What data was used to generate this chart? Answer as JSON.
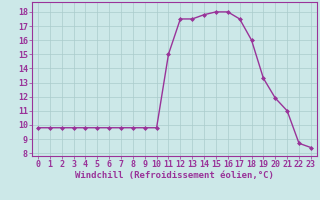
{
  "x": [
    0,
    1,
    2,
    3,
    4,
    5,
    6,
    7,
    8,
    9,
    10,
    11,
    12,
    13,
    14,
    15,
    16,
    17,
    18,
    19,
    20,
    21,
    22,
    23
  ],
  "y": [
    9.8,
    9.8,
    9.8,
    9.8,
    9.8,
    9.8,
    9.8,
    9.8,
    9.8,
    9.8,
    9.8,
    15.0,
    17.5,
    17.5,
    17.8,
    18.0,
    18.0,
    17.5,
    16.0,
    13.3,
    11.9,
    11.0,
    8.7,
    8.4
  ],
  "line_color": "#993399",
  "marker": "D",
  "marker_size": 2.0,
  "bg_color": "#cce8e8",
  "grid_color": "#aacccc",
  "xlabel": "Windchill (Refroidissement éolien,°C)",
  "xlabel_fontsize": 6.5,
  "ylabel_ticks": [
    8,
    9,
    10,
    11,
    12,
    13,
    14,
    15,
    16,
    17,
    18
  ],
  "xtick_labels": [
    "0",
    "1",
    "2",
    "3",
    "4",
    "5",
    "6",
    "7",
    "8",
    "9",
    "10",
    "11",
    "12",
    "13",
    "14",
    "15",
    "16",
    "17",
    "18",
    "19",
    "20",
    "21",
    "22",
    "23"
  ],
  "ylim": [
    7.8,
    18.7
  ],
  "xlim": [
    -0.5,
    23.5
  ],
  "tick_color": "#993399",
  "tick_fontsize": 6.0,
  "linewidth": 1.0
}
